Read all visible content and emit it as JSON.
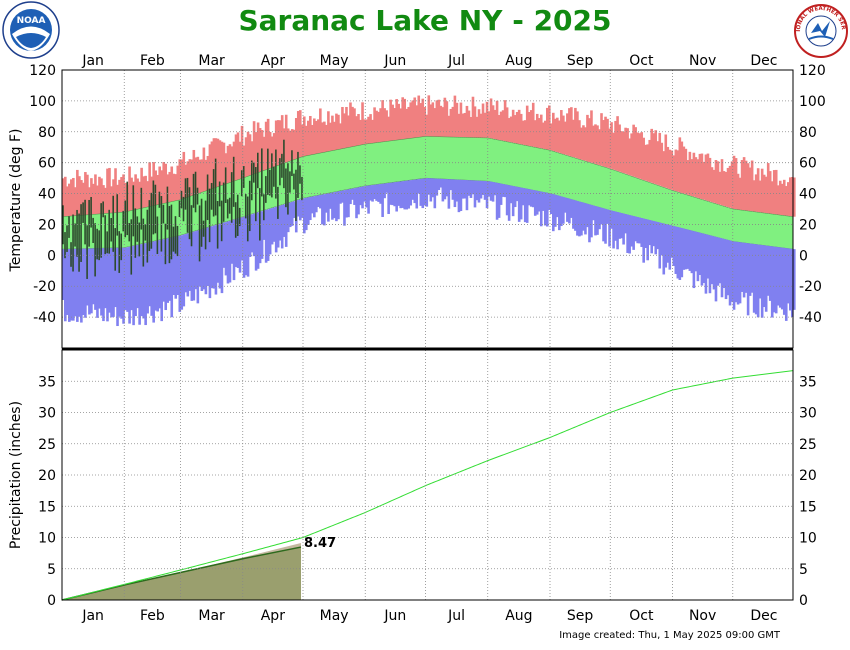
{
  "title": "Saranac Lake NY - 2025",
  "footer": "Image created: Thu, 1 May 2025 09:00 GMT",
  "logos": {
    "left": "NOAA",
    "right": "NATIONAL WEATHER SERVICE"
  },
  "colors": {
    "record_high": "#f08080",
    "normal_band": "#80f080",
    "record_low": "#8080f0",
    "observed": "#2d4a2d",
    "precip_normal_line": "#33dd33",
    "precip_observed_fill": "#5a9a3a",
    "precip_normal_fill": "#b0a080",
    "title": "#118a11"
  },
  "chart_data": [
    {
      "type": "area",
      "panel": "temperature",
      "ylabel": "Temperature (deg F)",
      "ylim": [
        -60,
        120
      ],
      "yticks": [
        120,
        100,
        80,
        60,
        40,
        20,
        0,
        -20,
        -40
      ],
      "months": [
        "Jan",
        "Feb",
        "Mar",
        "Apr",
        "May",
        "Jun",
        "Jul",
        "Aug",
        "Sep",
        "Oct",
        "Nov",
        "Dec"
      ],
      "grid": true,
      "series": [
        {
          "x_day": [
            1,
            32,
            60,
            91,
            121,
            152,
            182,
            213,
            244,
            274,
            305,
            335,
            365
          ],
          "values": [
            50,
            50,
            60,
            78,
            90,
            94,
            97,
            96,
            92,
            85,
            71,
            58,
            50
          ]
        },
        {
          "x_day": [
            1,
            32,
            60,
            91,
            121,
            152,
            182,
            213,
            244,
            274,
            305,
            335,
            365
          ],
          "values": [
            25,
            28,
            36,
            50,
            64,
            72,
            77,
            76,
            68,
            56,
            42,
            30,
            25
          ]
        },
        {
          "x_day": [
            1,
            32,
            60,
            91,
            121,
            152,
            182,
            213,
            244,
            274,
            305,
            335,
            365
          ],
          "values": [
            4,
            5,
            13,
            25,
            37,
            45,
            50,
            48,
            40,
            29,
            19,
            9,
            4
          ]
        },
        {
          "x_day": [
            1,
            32,
            60,
            91,
            121,
            152,
            182,
            213,
            244,
            274,
            305,
            335,
            365
          ],
          "values": [
            -36,
            -40,
            -32,
            -8,
            22,
            30,
            38,
            32,
            24,
            12,
            -8,
            -30,
            -36
          ]
        }
      ],
      "observed_through_day": 120
    },
    {
      "type": "line",
      "panel": "precipitation",
      "ylabel": "Precipitation (inches)",
      "ylim": [
        0,
        40
      ],
      "yticks": [
        0,
        5,
        10,
        15,
        20,
        25,
        30,
        35
      ],
      "months": [
        "Jan",
        "Feb",
        "Mar",
        "Apr",
        "May",
        "Jun",
        "Jul",
        "Aug",
        "Sep",
        "Oct",
        "Nov",
        "Dec"
      ],
      "grid": true,
      "series": [
        {
          "x_day": [
            1,
            32,
            60,
            91,
            121,
            152,
            182,
            213,
            244,
            274,
            305,
            335,
            365
          ],
          "values": [
            0,
            2.5,
            4.8,
            7.4,
            10.0,
            14.0,
            18.3,
            22.3,
            26.0,
            30.0,
            33.6,
            35.5,
            36.7
          ]
        },
        {
          "x_day": [
            1,
            32,
            60,
            91,
            120
          ],
          "values": [
            0,
            2.4,
            4.4,
            6.6,
            8.47
          ]
        }
      ],
      "annotation": "8.47"
    }
  ]
}
